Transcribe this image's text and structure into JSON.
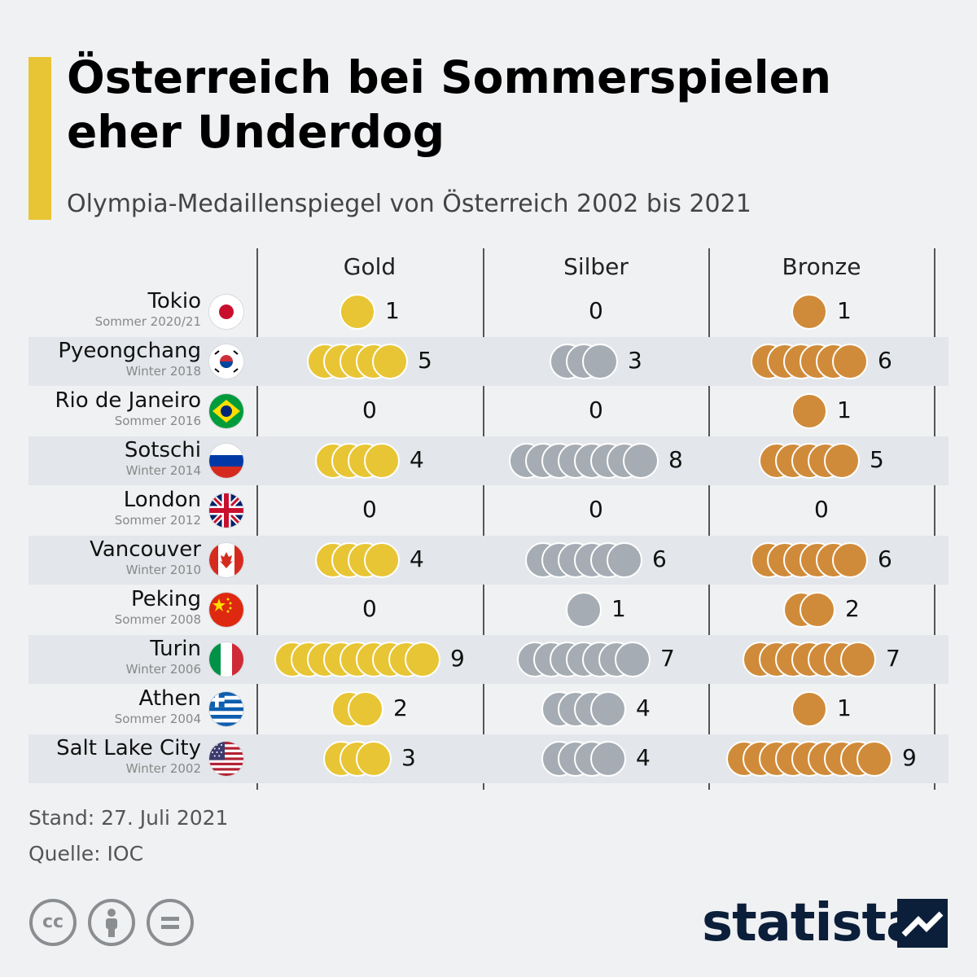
{
  "header": {
    "title": "Österreich bei Sommerspielen eher Underdog",
    "subtitle": "Olympia-Medaillenspiegel von Österreich 2002 bis 2021"
  },
  "chart_data": {
    "type": "table",
    "title": "Österreich bei Sommerspielen eher Underdog",
    "subtitle": "Olympia-Medaillenspiegel von Österreich 2002 bis 2021",
    "columns": [
      "Gold",
      "Silber",
      "Bronze"
    ],
    "rows": [
      {
        "name": "Tokio",
        "sub": "Sommer 2020/21",
        "flag": "japan-flag",
        "gold": 1,
        "silver": 0,
        "bronze": 1
      },
      {
        "name": "Pyeongchang",
        "sub": "Winter 2018",
        "flag": "south-korea-flag",
        "gold": 5,
        "silver": 3,
        "bronze": 6
      },
      {
        "name": "Rio de Janeiro",
        "sub": "Sommer 2016",
        "flag": "brazil-flag",
        "gold": 0,
        "silver": 0,
        "bronze": 1
      },
      {
        "name": "Sotschi",
        "sub": "Winter 2014",
        "flag": "russia-flag",
        "gold": 4,
        "silver": 8,
        "bronze": 5
      },
      {
        "name": "London",
        "sub": "Sommer 2012",
        "flag": "uk-flag",
        "gold": 0,
        "silver": 0,
        "bronze": 0
      },
      {
        "name": "Vancouver",
        "sub": "Winter 2010",
        "flag": "canada-flag",
        "gold": 4,
        "silver": 6,
        "bronze": 6
      },
      {
        "name": "Peking",
        "sub": "Sommer 2008",
        "flag": "china-flag",
        "gold": 0,
        "silver": 1,
        "bronze": 2
      },
      {
        "name": "Turin",
        "sub": "Winter 2006",
        "flag": "italy-flag",
        "gold": 9,
        "silver": 7,
        "bronze": 7
      },
      {
        "name": "Athen",
        "sub": "Sommer 2004",
        "flag": "greece-flag",
        "gold": 2,
        "silver": 4,
        "bronze": 1
      },
      {
        "name": "Salt Lake City",
        "sub": "Winter 2002",
        "flag": "usa-flag",
        "gold": 3,
        "silver": 4,
        "bronze": 9
      }
    ]
  },
  "colors": {
    "accent": "#e8c534",
    "gold": "#e8c534",
    "silver": "#a6acb3",
    "bronze": "#d08b3a",
    "brand": "#0b1f3a"
  },
  "footer": {
    "stand": "Stand: 27. Juli 2021",
    "quelle": "Quelle: IOC",
    "cc_icons": [
      "cc-icon",
      "by-icon",
      "nd-icon"
    ],
    "logo": "statista"
  }
}
